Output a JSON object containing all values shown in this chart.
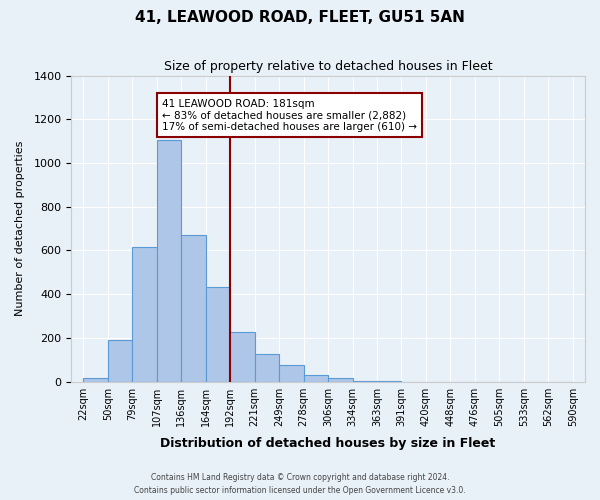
{
  "title": "41, LEAWOOD ROAD, FLEET, GU51 5AN",
  "subtitle": "Size of property relative to detached houses in Fleet",
  "xlabel": "Distribution of detached houses by size in Fleet",
  "ylabel": "Number of detached properties",
  "bin_labels": [
    "22sqm",
    "50sqm",
    "79sqm",
    "107sqm",
    "136sqm",
    "164sqm",
    "192sqm",
    "221sqm",
    "249sqm",
    "278sqm",
    "306sqm",
    "334sqm",
    "363sqm",
    "391sqm",
    "420sqm",
    "448sqm",
    "476sqm",
    "505sqm",
    "533sqm",
    "562sqm",
    "590sqm"
  ],
  "bar_heights": [
    15,
    190,
    615,
    1105,
    672,
    432,
    225,
    125,
    78,
    30,
    15,
    5,
    5,
    0,
    0,
    0,
    0,
    0,
    0,
    0
  ],
  "bar_color": "#aec6e8",
  "bar_edge_color": "#5b9bd5",
  "vline_x": 6.0,
  "vline_color": "#8b0000",
  "annotation_text": "41 LEAWOOD ROAD: 181sqm\n← 83% of detached houses are smaller (2,882)\n17% of semi-detached houses are larger (610) →",
  "annotation_box_color": "#ffffff",
  "annotation_box_edge_color": "#8b0000",
  "ylim": [
    0,
    1400
  ],
  "yticks": [
    0,
    200,
    400,
    600,
    800,
    1000,
    1200,
    1400
  ],
  "footer_line1": "Contains HM Land Registry data © Crown copyright and database right 2024.",
  "footer_line2": "Contains public sector information licensed under the Open Government Licence v3.0.",
  "bg_color": "#e8f0f8",
  "plot_bg_color": "#e8f0f8"
}
